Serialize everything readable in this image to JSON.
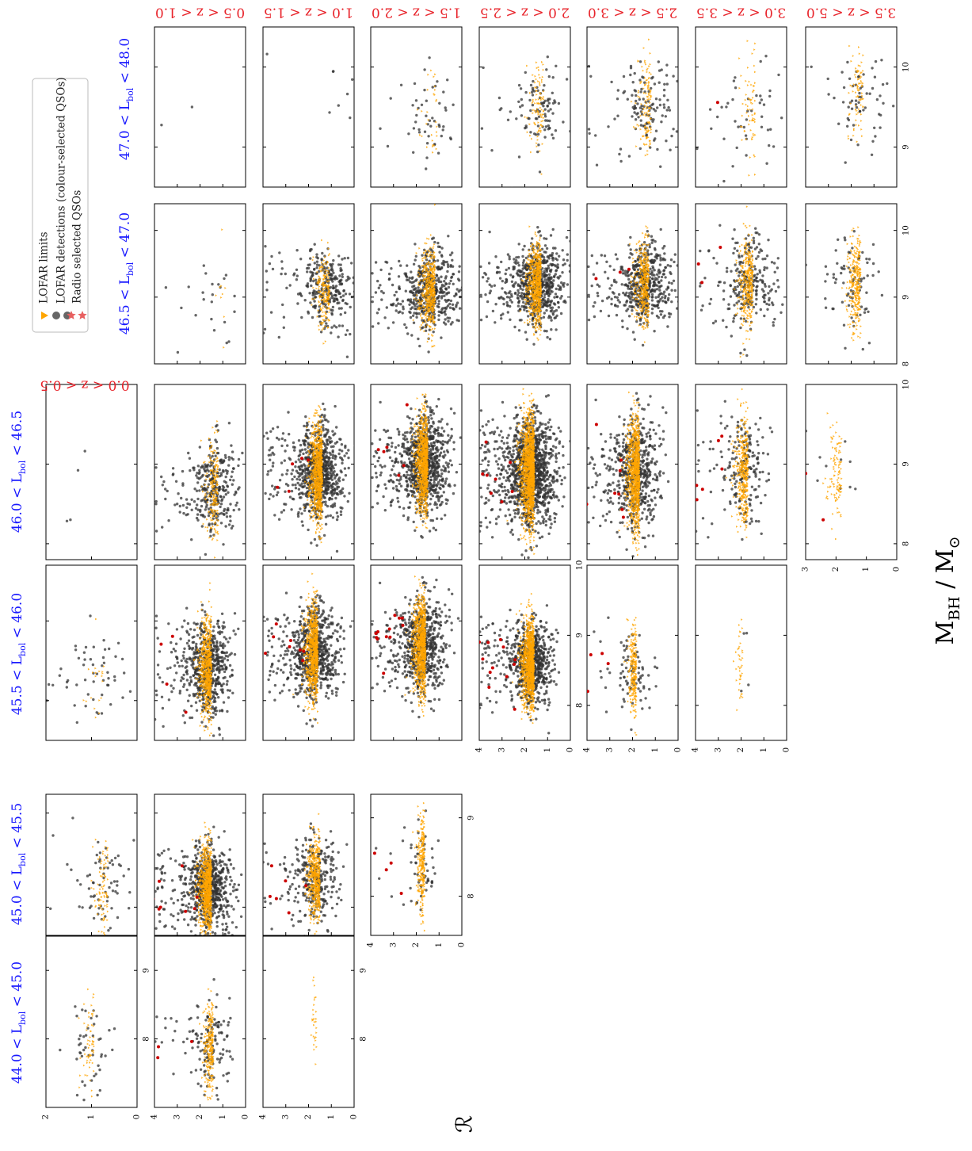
{
  "chart_data": {
    "type": "scatter",
    "xlabel": "M_BH / M_⊙",
    "ylabel": "ℛ",
    "lum_bins": [
      "44.0 < L_bol < 45.0",
      "45.0 < L_bol < 45.5",
      "45.5 < L_bol < 46.0",
      "46.0 < L_bol < 46.5",
      "46.5 < L_bol < 47.0",
      "47.0 < L_bol < 48.0"
    ],
    "z_bins": [
      "0.0 < z < 0.5",
      "0.5 < z < 1.0",
      "1.0 < z < 1.5",
      "1.5 < z < 2.0",
      "2.0 < z < 2.5",
      "2.5 < z < 3.0",
      "3.0 < z < 3.5",
      "3.5 < z < 5.0"
    ],
    "legend": [
      {
        "label": "LOFAR limits",
        "color": "#ffa500",
        "marker": "triangle"
      },
      {
        "label": "LOFAR detections (colour-selected QSOs)",
        "color": "#555555",
        "marker": "circle"
      },
      {
        "label": "Radio selected QSOs",
        "color": "#cc0000",
        "marker": "star"
      }
    ],
    "colors": {
      "lum_labels": "#1a1aff",
      "z_labels": "#e8232a",
      "limits": "#ffa500",
      "detections": "#333333",
      "radio": "#cc0000"
    },
    "ylim_default": [
      0,
      4
    ],
    "panels": [
      {
        "z": 0,
        "lum": 0,
        "xlim": [
          7,
          9.5
        ],
        "ylim": [
          0,
          2
        ],
        "yticks": [
          0,
          1,
          2
        ],
        "xticks": [
          8,
          9
        ],
        "n_det": 45,
        "n_lim": 60,
        "n_radio": 0,
        "center": [
          7.9,
          1.0
        ],
        "spread": [
          0.35,
          0.25
        ]
      },
      {
        "z": 0,
        "lum": 1,
        "xlim": [
          7.7,
          9.2
        ],
        "ylim": [
          0,
          2
        ],
        "n_det": 70,
        "n_lim": 90,
        "n_radio": 0,
        "center": [
          8.2,
          0.7
        ],
        "spread": [
          0.25,
          0.3
        ]
      },
      {
        "z": 0,
        "lum": 2,
        "xlim": [
          7.5,
          9.7
        ],
        "ylim": [
          0,
          2
        ],
        "n_det": 55,
        "n_lim": 20,
        "n_radio": 0,
        "center": [
          8.3,
          0.8
        ],
        "spread": [
          0.3,
          0.35
        ]
      },
      {
        "z": 0,
        "lum": 3,
        "xlim": [
          7.8,
          10.0
        ],
        "ylim": [
          0,
          2
        ],
        "n_det": 4,
        "n_lim": 0,
        "n_radio": 0,
        "center": [
          8.7,
          1.3
        ],
        "spread": [
          0.3,
          0.2
        ]
      },
      {
        "z": 1,
        "lum": 0,
        "xlim": [
          7,
          9.5
        ],
        "ylim": [
          0,
          4
        ],
        "yticks": [
          0,
          1,
          2,
          3,
          4
        ],
        "n_det": 140,
        "n_lim": 260,
        "n_radio": 3,
        "center": [
          7.9,
          1.5
        ],
        "spread": [
          0.35,
          0.4
        ]
      },
      {
        "z": 1,
        "lum": 1,
        "xlim": [
          7.7,
          9.2
        ],
        "n_det": 700,
        "n_lim": 900,
        "n_radio": 8,
        "center": [
          8.2,
          1.6
        ],
        "spread": [
          0.22,
          0.5
        ]
      },
      {
        "z": 1,
        "lum": 2,
        "xlim": [
          7.5,
          9.7
        ],
        "n_det": 600,
        "n_lim": 700,
        "n_radio": 4,
        "center": [
          8.4,
          1.6
        ],
        "spread": [
          0.3,
          0.5
        ]
      },
      {
        "z": 1,
        "lum": 3,
        "xlim": [
          7.8,
          10.0
        ],
        "n_det": 320,
        "n_lim": 200,
        "n_radio": 0,
        "center": [
          8.7,
          1.3
        ],
        "spread": [
          0.3,
          0.5
        ]
      },
      {
        "z": 1,
        "lum": 4,
        "xlim": [
          8.0,
          10.4
        ],
        "n_det": 25,
        "n_lim": 10,
        "n_radio": 0,
        "center": [
          9.0,
          1.0
        ],
        "spread": [
          0.4,
          0.7
        ]
      },
      {
        "z": 1,
        "lum": 5,
        "xlim": [
          8.5,
          10.5
        ],
        "n_det": 2,
        "n_lim": 0,
        "n_radio": 0,
        "center": [
          9.4,
          2.4
        ],
        "spread": [
          0.1,
          0.1
        ]
      },
      {
        "z": 2,
        "lum": 0,
        "xlim": [
          7,
          9.5
        ],
        "ylim": [
          0,
          4
        ],
        "yticks": [
          0,
          1,
          2,
          3,
          4
        ],
        "xticks": [
          8,
          9
        ],
        "n_det": 0,
        "n_lim": 30,
        "n_radio": 0,
        "center": [
          8.3,
          1.7
        ],
        "spread": [
          0.25,
          0.2
        ]
      },
      {
        "z": 2,
        "lum": 1,
        "xlim": [
          7.7,
          9.2
        ],
        "n_det": 300,
        "n_lim": 500,
        "n_radio": 6,
        "center": [
          8.3,
          1.6
        ],
        "spread": [
          0.22,
          0.5
        ]
      },
      {
        "z": 2,
        "lum": 2,
        "xlim": [
          7.5,
          9.7
        ],
        "n_det": 700,
        "n_lim": 900,
        "n_radio": 8,
        "center": [
          8.6,
          1.7
        ],
        "spread": [
          0.3,
          0.5
        ]
      },
      {
        "z": 2,
        "lum": 3,
        "xlim": [
          7.8,
          10.0
        ],
        "n_det": 800,
        "n_lim": 900,
        "n_radio": 5,
        "center": [
          8.9,
          1.5
        ],
        "spread": [
          0.3,
          0.5
        ]
      },
      {
        "z": 2,
        "lum": 4,
        "xlim": [
          8.0,
          10.4
        ],
        "n_det": 300,
        "n_lim": 200,
        "n_radio": 0,
        "center": [
          9.1,
          1.2
        ],
        "spread": [
          0.3,
          0.6
        ]
      },
      {
        "z": 2,
        "lum": 5,
        "xlim": [
          8.5,
          10.5
        ],
        "n_det": 8,
        "n_lim": 0,
        "n_radio": 0,
        "center": [
          9.6,
          0.6
        ],
        "spread": [
          0.3,
          0.4
        ]
      },
      {
        "z": 3,
        "lum": 1,
        "xlim": [
          7.5,
          9.3
        ],
        "ylim": [
          0,
          4
        ],
        "yticks": [
          0,
          1,
          2,
          3,
          4
        ],
        "xticks": [
          8,
          9
        ],
        "n_det": 60,
        "n_lim": 280,
        "n_radio": 4,
        "center": [
          8.4,
          1.7
        ],
        "spread": [
          0.3,
          0.3
        ]
      },
      {
        "z": 3,
        "lum": 2,
        "xlim": [
          7.5,
          9.7
        ],
        "n_det": 700,
        "n_lim": 1000,
        "n_radio": 12,
        "center": [
          8.7,
          1.7
        ],
        "spread": [
          0.3,
          0.5
        ]
      },
      {
        "z": 3,
        "lum": 3,
        "xlim": [
          7.8,
          10.0
        ],
        "n_det": 900,
        "n_lim": 1000,
        "n_radio": 6,
        "center": [
          9.0,
          1.6
        ],
        "spread": [
          0.3,
          0.5
        ]
      },
      {
        "z": 3,
        "lum": 4,
        "xlim": [
          8.0,
          10.4
        ],
        "n_det": 500,
        "n_lim": 500,
        "n_radio": 0,
        "center": [
          9.1,
          1.3
        ],
        "spread": [
          0.3,
          0.6
        ]
      },
      {
        "z": 3,
        "lum": 5,
        "xlim": [
          8.5,
          10.5
        ],
        "n_det": 50,
        "n_lim": 30,
        "n_radio": 0,
        "center": [
          9.4,
          1.2
        ],
        "spread": [
          0.3,
          0.6
        ]
      },
      {
        "z": 4,
        "lum": 2,
        "xlim": [
          7.5,
          10.0
        ],
        "ylim": [
          0,
          4
        ],
        "yticks": [
          0,
          1,
          2,
          3,
          4
        ],
        "xticks": [
          8,
          9,
          10
        ],
        "n_det": 700,
        "n_lim": 1200,
        "n_radio": 12,
        "center": [
          8.6,
          1.7
        ],
        "spread": [
          0.3,
          0.5
        ]
      },
      {
        "z": 4,
        "lum": 3,
        "xlim": [
          7.8,
          10.0
        ],
        "n_det": 1200,
        "n_lim": 1500,
        "n_radio": 8,
        "center": [
          8.9,
          1.7
        ],
        "spread": [
          0.35,
          0.55
        ]
      },
      {
        "z": 4,
        "lum": 4,
        "xlim": [
          8.0,
          10.4
        ],
        "n_det": 700,
        "n_lim": 700,
        "n_radio": 0,
        "center": [
          9.2,
          1.4
        ],
        "spread": [
          0.3,
          0.55
        ]
      },
      {
        "z": 4,
        "lum": 5,
        "xlim": [
          8.5,
          10.5
        ],
        "n_det": 100,
        "n_lim": 100,
        "n_radio": 0,
        "center": [
          9.5,
          1.3
        ],
        "spread": [
          0.3,
          0.6
        ]
      },
      {
        "z": 5,
        "lum": 2,
        "xlim": [
          7.5,
          10.0
        ],
        "ylim": [
          0,
          4
        ],
        "yticks": [
          0,
          1,
          2,
          3,
          4
        ],
        "n_det": 90,
        "n_lim": 250,
        "n_radio": 4,
        "center": [
          8.5,
          1.9
        ],
        "spread": [
          0.3,
          0.35
        ]
      },
      {
        "z": 5,
        "lum": 3,
        "xlim": [
          7.8,
          10.0
        ],
        "n_det": 600,
        "n_lim": 1000,
        "n_radio": 8,
        "center": [
          8.9,
          1.8
        ],
        "spread": [
          0.35,
          0.5
        ]
      },
      {
        "z": 5,
        "lum": 4,
        "xlim": [
          8.0,
          10.4
        ],
        "n_det": 500,
        "n_lim": 400,
        "n_radio": 3,
        "center": [
          9.2,
          1.4
        ],
        "spread": [
          0.3,
          0.55
        ]
      },
      {
        "z": 5,
        "lum": 5,
        "xlim": [
          8.5,
          10.5
        ],
        "n_det": 130,
        "n_lim": 130,
        "n_radio": 0,
        "center": [
          9.5,
          1.3
        ],
        "spread": [
          0.3,
          0.6
        ]
      },
      {
        "z": 6,
        "lum": 2,
        "xlim": [
          7.5,
          10.0
        ],
        "ylim": [
          0,
          4
        ],
        "yticks": [
          0,
          1,
          2,
          3,
          4
        ],
        "n_det": 4,
        "n_lim": 40,
        "n_radio": 0,
        "center": [
          8.5,
          2.0
        ],
        "spread": [
          0.3,
          0.3
        ]
      },
      {
        "z": 6,
        "lum": 3,
        "xlim": [
          7.8,
          10.0
        ],
        "n_det": 200,
        "n_lim": 400,
        "n_radio": 6,
        "center": [
          8.9,
          1.8
        ],
        "spread": [
          0.35,
          0.5
        ]
      },
      {
        "z": 6,
        "lum": 4,
        "xlim": [
          8.0,
          10.4
        ],
        "n_det": 250,
        "n_lim": 350,
        "n_radio": 3,
        "center": [
          9.2,
          1.6
        ],
        "spread": [
          0.35,
          0.55
        ]
      },
      {
        "z": 6,
        "lum": 5,
        "xlim": [
          8.5,
          10.5
        ],
        "n_det": 45,
        "n_lim": 70,
        "n_radio": 1,
        "center": [
          9.5,
          1.5
        ],
        "spread": [
          0.35,
          0.6
        ]
      },
      {
        "z": 7,
        "lum": 3,
        "xlim": [
          7.8,
          10.0
        ],
        "ylim": [
          0,
          3
        ],
        "yticks": [
          0,
          1,
          2,
          3
        ],
        "xticks": [
          8,
          9,
          10
        ],
        "n_det": 10,
        "n_lim": 110,
        "n_radio": 2,
        "center": [
          8.9,
          1.9
        ],
        "spread": [
          0.35,
          0.4
        ]
      },
      {
        "z": 7,
        "lum": 4,
        "xlim": [
          8.0,
          10.4
        ],
        "xticks": [
          8,
          9,
          10
        ],
        "n_det": 80,
        "n_lim": 300,
        "n_radio": 0,
        "center": [
          9.2,
          1.7
        ],
        "spread": [
          0.35,
          0.55
        ]
      },
      {
        "z": 7,
        "lum": 5,
        "xlim": [
          8.5,
          10.5
        ],
        "xticks": [
          9,
          10
        ],
        "n_det": 60,
        "n_lim": 80,
        "n_radio": 0,
        "center": [
          9.6,
          1.6
        ],
        "spread": [
          0.3,
          0.6
        ]
      }
    ]
  }
}
